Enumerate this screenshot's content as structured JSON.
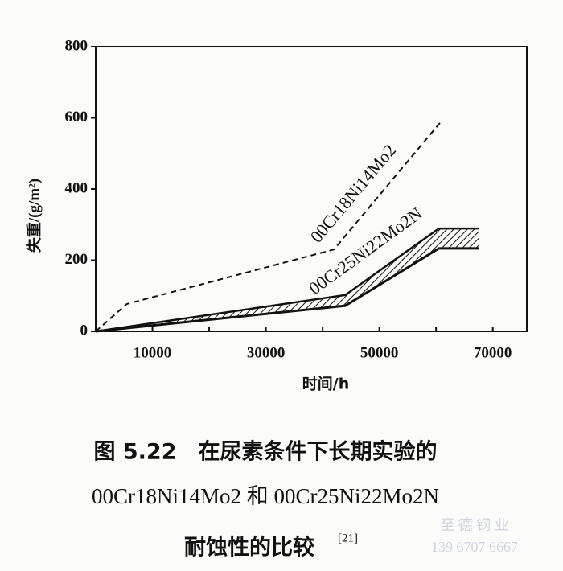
{
  "chart_data": {
    "type": "line",
    "xlabel": "时间/h",
    "ylabel": "失重/(g/m²)",
    "xlim": [
      0,
      76000
    ],
    "ylim": [
      0,
      800
    ],
    "xticks": [
      10000,
      30000,
      50000,
      70000
    ],
    "xminorticks": [
      20000,
      40000,
      60000
    ],
    "yticks": [
      0,
      200,
      400,
      600,
      800
    ],
    "series": [
      {
        "name": "00Cr18Ni14Mo2",
        "color": "#111111",
        "style": "dashed",
        "x": [
          0,
          5500,
          42000,
          60800
        ],
        "values": [
          0,
          77,
          230,
          588
        ]
      },
      {
        "name": "00Cr25Ni22Mo2N",
        "color": "#111111",
        "style": "hatched-band",
        "x": [
          0,
          44000,
          60500,
          67500
        ],
        "high": [
          0,
          102,
          289,
          289
        ],
        "low": [
          0,
          72,
          233,
          233
        ]
      }
    ]
  },
  "caption": {
    "lines": [
      "图 5.22　在尿素条件下长期实验的",
      "00Cr18Ni14Mo2 和 00Cr25Ni22Mo2N",
      "耐蚀性的比较"
    ],
    "reference": "[21]"
  },
  "watermark": {
    "name": "至 德 钢 业",
    "phone": "139 6707 6667"
  }
}
